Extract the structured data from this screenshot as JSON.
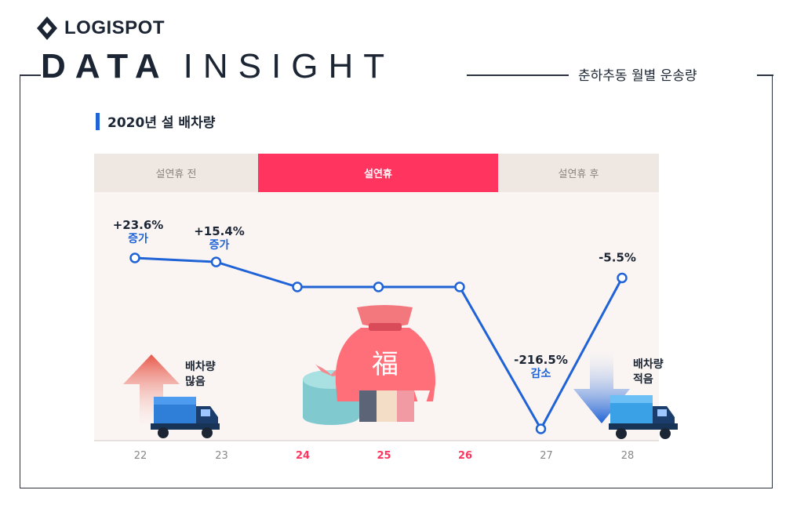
{
  "brand": {
    "name": "LOGISPOT"
  },
  "header": {
    "title_bold": "DATA",
    "title_light": "INSIGHT",
    "subtitle": "춘하추동 월별 운송량"
  },
  "section": {
    "title": "2020년 설 배차량"
  },
  "tabs": [
    {
      "label": "설연휴 전",
      "active": false
    },
    {
      "label": "설연휴",
      "active": true
    },
    {
      "label": "설연휴 후",
      "active": false
    }
  ],
  "illustrations": {
    "left_label": [
      "배차량",
      "많음"
    ],
    "right_label": [
      "배차량",
      "적음"
    ],
    "bag_character": "福"
  },
  "colors": {
    "line": "#1f63d6",
    "holiday": "#ff3560",
    "axis_text": "#888888"
  },
  "chart_data": {
    "type": "line",
    "x": [
      "22",
      "23",
      "24",
      "25",
      "26",
      "27",
      "28"
    ],
    "holiday_x": [
      "24",
      "25",
      "26"
    ],
    "values": [
      0.7,
      0.66,
      0.41,
      0.41,
      0.41,
      -1.3,
      0.5
    ],
    "annotations": [
      {
        "x": "22",
        "value": "+23.6%",
        "note": "증가"
      },
      {
        "x": "23",
        "value": "+15.4%",
        "note": "증가"
      },
      {
        "x": "27",
        "value": "-216.5%",
        "note": "감소"
      },
      {
        "x": "28",
        "value": "-5.5%",
        "note": ""
      }
    ],
    "grid": false
  }
}
